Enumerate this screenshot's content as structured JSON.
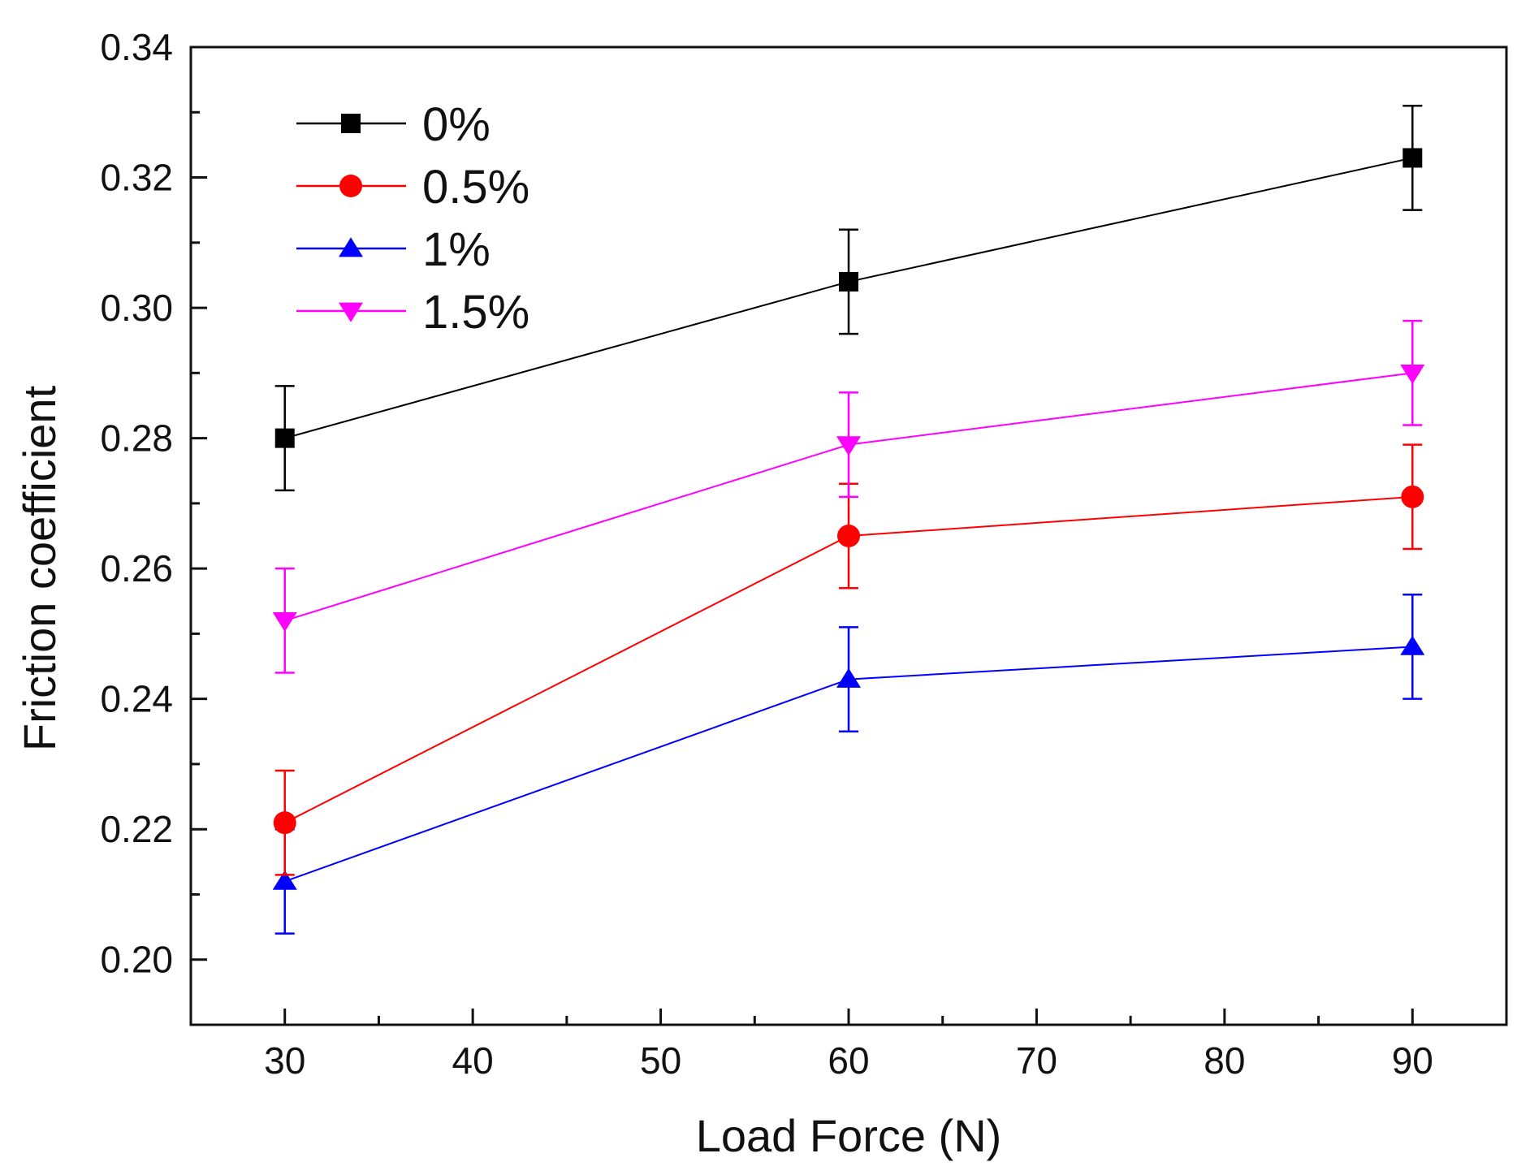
{
  "chart_data": {
    "type": "line",
    "title": "",
    "xlabel": "Load Force (N)",
    "ylabel": "Friction coefficient",
    "xlim": [
      25,
      95
    ],
    "ylim": [
      0.19,
      0.34
    ],
    "xticks": [
      30,
      40,
      50,
      60,
      70,
      80,
      90
    ],
    "xtick_labels": [
      "30",
      "40",
      "50",
      "60",
      "70",
      "80",
      "90"
    ],
    "yticks": [
      0.2,
      0.22,
      0.24,
      0.26,
      0.28,
      0.3,
      0.32,
      0.34
    ],
    "ytick_labels": [
      "0.20",
      "0.22",
      "0.24",
      "0.26",
      "0.28",
      "0.30",
      "0.32",
      "0.34"
    ],
    "grid": false,
    "legend_position": "top-left",
    "x": [
      30,
      60,
      90
    ],
    "series": [
      {
        "name": "0%",
        "color": "#000000",
        "marker": "square",
        "values": [
          0.28,
          0.304,
          0.323
        ],
        "errors": [
          0.008,
          0.008,
          0.008
        ]
      },
      {
        "name": "0.5%",
        "color": "#ff0000",
        "marker": "circle",
        "values": [
          0.221,
          0.265,
          0.271
        ],
        "errors": [
          0.008,
          0.008,
          0.008
        ]
      },
      {
        "name": "1%",
        "color": "#0000ff",
        "marker": "triangle-up",
        "values": [
          0.212,
          0.243,
          0.248
        ],
        "errors": [
          0.008,
          0.008,
          0.008
        ]
      },
      {
        "name": "1.5%",
        "color": "#ff00ff",
        "marker": "triangle-down",
        "values": [
          0.252,
          0.279,
          0.29
        ],
        "errors": [
          0.008,
          0.008,
          0.008
        ]
      }
    ]
  }
}
